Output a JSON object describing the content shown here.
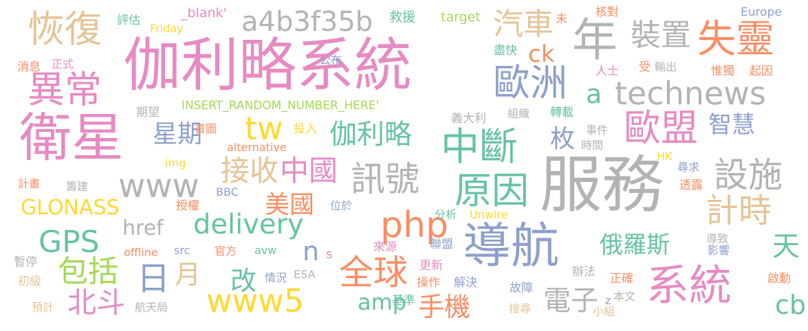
{
  "palette": {
    "pink": "#e78ac3",
    "orange": "#fc8d62",
    "blue": "#8da0cb",
    "green": "#66c2a5",
    "lime": "#a6d854",
    "yellow": "#ffd92f",
    "tan": "#e5c494",
    "gray": "#b3b3b3"
  },
  "words": [
    "伽利略系統",
    "服務",
    "衛星",
    "導航",
    "系統",
    "technews",
    "年",
    "失靈",
    "恢復",
    "a4b3f35b",
    "異常",
    "中斷",
    "歐洲",
    "歐盟",
    "原因",
    "訊號",
    "設施",
    "php",
    "全球",
    "delivery",
    "www5",
    "GPS",
    "www",
    "接收",
    "中國",
    "伽利略",
    "計時",
    "tw",
    "汽車",
    "裝置",
    "星期",
    "日",
    "月",
    "北斗",
    "包括",
    "手機",
    "amp",
    "電子",
    "天",
    "cb",
    "GLONASS",
    "href",
    "美國",
    "俄羅斯",
    "智慧",
    "改",
    "枚",
    "ck",
    "a",
    "n",
    "s",
    "INSERT_RANDOM_NUMBER_HERE'",
    "_blank'",
    "target",
    "Friday",
    "alternative",
    "img",
    "BBC",
    "src",
    "avw",
    "offline",
    "ESA",
    "Unwire",
    "Europe",
    "評估",
    "救援",
    "未",
    "核對",
    "公布",
    "消息",
    "正式",
    "期望",
    "盡快",
    "人士",
    "受",
    "輸出",
    "惟獨",
    "起因",
    "組織",
    "轉載",
    "義大利",
    "首圖",
    "投入",
    "事件",
    "時間",
    "HK",
    "尋求",
    "透露",
    "計畫",
    "籌建",
    "授權",
    "位於",
    "分析",
    "來源",
    "聯盟",
    "導致",
    "影響",
    "暫停",
    "初級",
    "情況",
    "更新",
    "辦法",
    "正確",
    "啟動",
    "操作",
    "解決",
    "故障",
    "本文",
    "預計",
    "航天局",
    "基準",
    "搜尋",
    "小組",
    "官方",
    "z"
  ]
}
